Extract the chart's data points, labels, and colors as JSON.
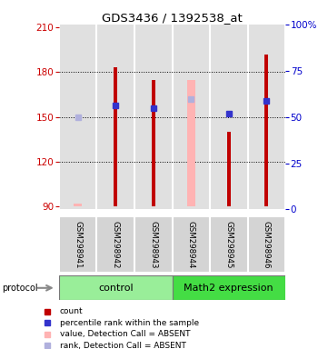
{
  "title": "GDS3436 / 1392538_at",
  "samples": [
    "GSM298941",
    "GSM298942",
    "GSM298943",
    "GSM298944",
    "GSM298945",
    "GSM298946"
  ],
  "ylim_left": [
    88,
    212
  ],
  "ylim_right": [
    0,
    100
  ],
  "yticks_left": [
    90,
    120,
    150,
    180,
    210
  ],
  "yticks_right": [
    0,
    25,
    50,
    75,
    100
  ],
  "red_bars": [
    null,
    183,
    175,
    null,
    140,
    192
  ],
  "pink_bars": [
    92,
    null,
    null,
    175,
    null,
    null
  ],
  "blue_squares": [
    null,
    158,
    156,
    null,
    152,
    161
  ],
  "lavender_squares": [
    150,
    null,
    null,
    162,
    null,
    null
  ],
  "bar_bottom": 90,
  "red_bar_color": "#c00000",
  "pink_bar_color": "#ffb3b3",
  "blue_sq_color": "#3333cc",
  "lavender_sq_color": "#b0b0dd",
  "control_color": "#99ee99",
  "math2_color": "#44dd44",
  "left_axis_color": "#cc0000",
  "right_axis_color": "#0000cc",
  "grid_color": "#000000",
  "col_bg_color": "#e0e0e0",
  "legend_labels": [
    "count",
    "percentile rank within the sample",
    "value, Detection Call = ABSENT",
    "rank, Detection Call = ABSENT"
  ]
}
